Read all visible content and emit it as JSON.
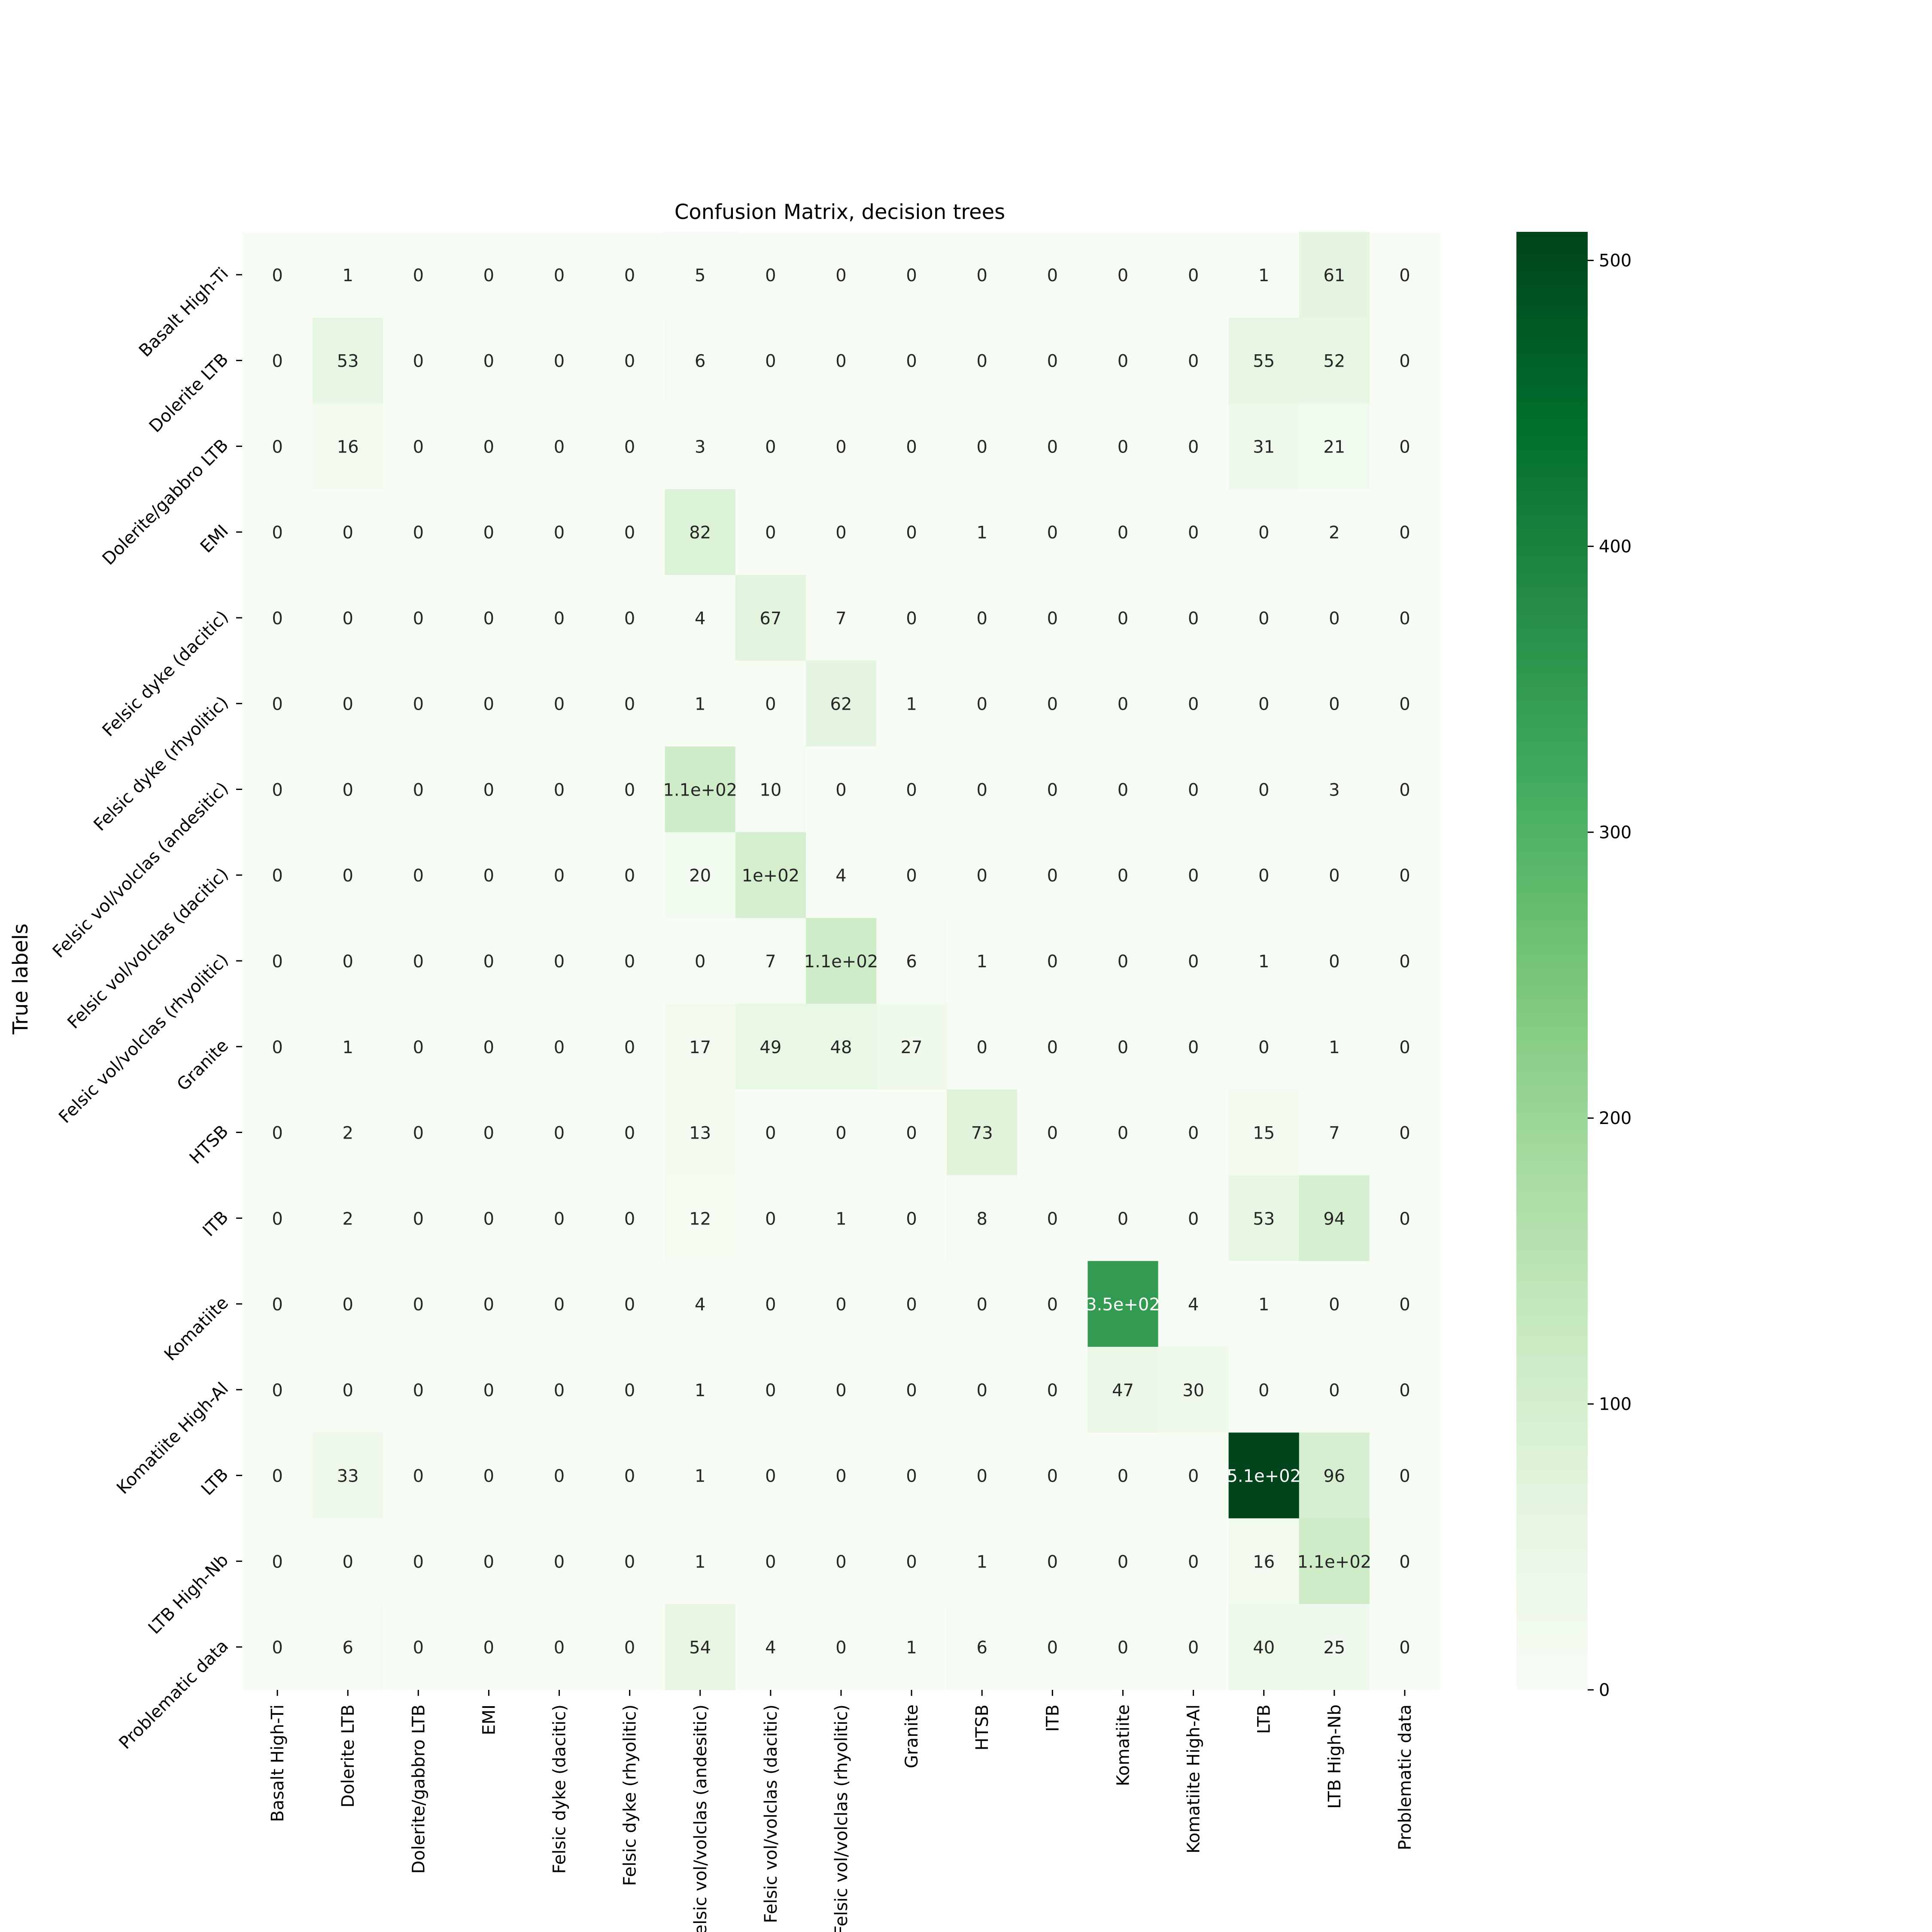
{
  "chart_data": {
    "type": "heatmap",
    "title": "Confusion Matrix, decision trees",
    "xlabel": "",
    "ylabel": "True labels",
    "x_categories": [
      "Basalt High-Ti",
      "Dolerite LTB",
      "Dolerite/gabbro LTB",
      "EMI",
      "Felsic dyke (dacitic)",
      "Felsic dyke (rhyolitic)",
      "Felsic vol/volclas (andesitic)",
      "Felsic vol/volclas (dacitic)",
      "Felsic vol/volclas (rhyolitic)",
      "Granite",
      "HTSB",
      "ITB",
      "Komatiite",
      "Komatiite High-Al",
      "LTB",
      "LTB High-Nb",
      "Problematic data"
    ],
    "y_categories": [
      "Basalt High-Ti",
      "Dolerite LTB",
      "Dolerite/gabbro LTB",
      "EMI",
      "Felsic dyke (dacitic)",
      "Felsic dyke (rhyolitic)",
      "Felsic vol/volclas (andesitic)",
      "Felsic vol/volclas (dacitic)",
      "Felsic vol/volclas (rhyolitic)",
      "Granite",
      "HTSB",
      "ITB",
      "Komatiite",
      "Komatiite High-Al",
      "LTB",
      "LTB High-Nb",
      "Problematic data"
    ],
    "values": [
      [
        0,
        1,
        0,
        0,
        0,
        0,
        5,
        0,
        0,
        0,
        0,
        0,
        0,
        0,
        1,
        61,
        0
      ],
      [
        0,
        53,
        0,
        0,
        0,
        0,
        6,
        0,
        0,
        0,
        0,
        0,
        0,
        0,
        55,
        52,
        0
      ],
      [
        0,
        16,
        0,
        0,
        0,
        0,
        3,
        0,
        0,
        0,
        0,
        0,
        0,
        0,
        31,
        21,
        0
      ],
      [
        0,
        0,
        0,
        0,
        0,
        0,
        82,
        0,
        0,
        0,
        1,
        0,
        0,
        0,
        0,
        2,
        0
      ],
      [
        0,
        0,
        0,
        0,
        0,
        0,
        4,
        67,
        7,
        0,
        0,
        0,
        0,
        0,
        0,
        0,
        0
      ],
      [
        0,
        0,
        0,
        0,
        0,
        0,
        1,
        0,
        62,
        1,
        0,
        0,
        0,
        0,
        0,
        0,
        0
      ],
      [
        0,
        0,
        0,
        0,
        0,
        0,
        110,
        10,
        0,
        0,
        0,
        0,
        0,
        0,
        0,
        3,
        0
      ],
      [
        0,
        0,
        0,
        0,
        0,
        0,
        20,
        100,
        4,
        0,
        0,
        0,
        0,
        0,
        0,
        0,
        0
      ],
      [
        0,
        0,
        0,
        0,
        0,
        0,
        0,
        7,
        110,
        6,
        1,
        0,
        0,
        0,
        1,
        0,
        0
      ],
      [
        0,
        1,
        0,
        0,
        0,
        0,
        17,
        49,
        48,
        27,
        0,
        0,
        0,
        0,
        0,
        1,
        0
      ],
      [
        0,
        2,
        0,
        0,
        0,
        0,
        13,
        0,
        0,
        0,
        73,
        0,
        0,
        0,
        15,
        7,
        0
      ],
      [
        0,
        2,
        0,
        0,
        0,
        0,
        12,
        0,
        1,
        0,
        8,
        0,
        0,
        0,
        53,
        94,
        0
      ],
      [
        0,
        0,
        0,
        0,
        0,
        0,
        4,
        0,
        0,
        0,
        0,
        0,
        350,
        4,
        1,
        0,
        0
      ],
      [
        0,
        0,
        0,
        0,
        0,
        0,
        1,
        0,
        0,
        0,
        0,
        0,
        47,
        30,
        0,
        0,
        0
      ],
      [
        0,
        33,
        0,
        0,
        0,
        0,
        1,
        0,
        0,
        0,
        0,
        0,
        0,
        0,
        510,
        96,
        0
      ],
      [
        0,
        0,
        0,
        0,
        0,
        0,
        1,
        0,
        0,
        0,
        1,
        0,
        0,
        0,
        16,
        110,
        0
      ],
      [
        0,
        6,
        0,
        0,
        0,
        0,
        54,
        4,
        0,
        1,
        6,
        0,
        0,
        0,
        40,
        25,
        0
      ]
    ],
    "annotations": [
      [
        "0",
        "1",
        "0",
        "0",
        "0",
        "0",
        "5",
        "0",
        "0",
        "0",
        "0",
        "0",
        "0",
        "0",
        "1",
        "61",
        "0"
      ],
      [
        "0",
        "53",
        "0",
        "0",
        "0",
        "0",
        "6",
        "0",
        "0",
        "0",
        "0",
        "0",
        "0",
        "0",
        "55",
        "52",
        "0"
      ],
      [
        "0",
        "16",
        "0",
        "0",
        "0",
        "0",
        "3",
        "0",
        "0",
        "0",
        "0",
        "0",
        "0",
        "0",
        "31",
        "21",
        "0"
      ],
      [
        "0",
        "0",
        "0",
        "0",
        "0",
        "0",
        "82",
        "0",
        "0",
        "0",
        "1",
        "0",
        "0",
        "0",
        "0",
        "2",
        "0"
      ],
      [
        "0",
        "0",
        "0",
        "0",
        "0",
        "0",
        "4",
        "67",
        "7",
        "0",
        "0",
        "0",
        "0",
        "0",
        "0",
        "0",
        "0"
      ],
      [
        "0",
        "0",
        "0",
        "0",
        "0",
        "0",
        "1",
        "0",
        "62",
        "1",
        "0",
        "0",
        "0",
        "0",
        "0",
        "0",
        "0"
      ],
      [
        "0",
        "0",
        "0",
        "0",
        "0",
        "0",
        "1.1e+02",
        "10",
        "0",
        "0",
        "0",
        "0",
        "0",
        "0",
        "0",
        "3",
        "0"
      ],
      [
        "0",
        "0",
        "0",
        "0",
        "0",
        "0",
        "20",
        "1e+02",
        "4",
        "0",
        "0",
        "0",
        "0",
        "0",
        "0",
        "0",
        "0"
      ],
      [
        "0",
        "0",
        "0",
        "0",
        "0",
        "0",
        "0",
        "7",
        "1.1e+02",
        "6",
        "1",
        "0",
        "0",
        "0",
        "1",
        "0",
        "0"
      ],
      [
        "0",
        "1",
        "0",
        "0",
        "0",
        "0",
        "17",
        "49",
        "48",
        "27",
        "0",
        "0",
        "0",
        "0",
        "0",
        "1",
        "0"
      ],
      [
        "0",
        "2",
        "0",
        "0",
        "0",
        "0",
        "13",
        "0",
        "0",
        "0",
        "73",
        "0",
        "0",
        "0",
        "15",
        "7",
        "0"
      ],
      [
        "0",
        "2",
        "0",
        "0",
        "0",
        "0",
        "12",
        "0",
        "1",
        "0",
        "8",
        "0",
        "0",
        "0",
        "53",
        "94",
        "0"
      ],
      [
        "0",
        "0",
        "0",
        "0",
        "0",
        "0",
        "4",
        "0",
        "0",
        "0",
        "0",
        "0",
        "3.5e+02",
        "4",
        "1",
        "0",
        "0"
      ],
      [
        "0",
        "0",
        "0",
        "0",
        "0",
        "0",
        "1",
        "0",
        "0",
        "0",
        "0",
        "0",
        "47",
        "30",
        "0",
        "0",
        "0"
      ],
      [
        "0",
        "33",
        "0",
        "0",
        "0",
        "0",
        "1",
        "0",
        "0",
        "0",
        "0",
        "0",
        "0",
        "0",
        "5.1e+02",
        "96",
        "0"
      ],
      [
        "0",
        "0",
        "0",
        "0",
        "0",
        "0",
        "1",
        "0",
        "0",
        "0",
        "1",
        "0",
        "0",
        "0",
        "16",
        "1.1e+02",
        "0"
      ],
      [
        "0",
        "6",
        "0",
        "0",
        "0",
        "0",
        "54",
        "4",
        "0",
        "1",
        "6",
        "0",
        "0",
        "0",
        "40",
        "25",
        "0"
      ]
    ],
    "colorbar": {
      "ticks": [
        0,
        100,
        200,
        300,
        400,
        500
      ],
      "tick_labels": [
        "0",
        "100",
        "200",
        "300",
        "400",
        "500"
      ],
      "range": [
        0,
        510
      ],
      "colormap": "Greens",
      "colors": [
        "#f7fcf5",
        "#e5f5e0",
        "#c7e9c0",
        "#a1d99b",
        "#74c476",
        "#41ab5d",
        "#238b45",
        "#006d2c",
        "#00441b"
      ]
    },
    "grid": false,
    "legend": "colorbar-right"
  }
}
